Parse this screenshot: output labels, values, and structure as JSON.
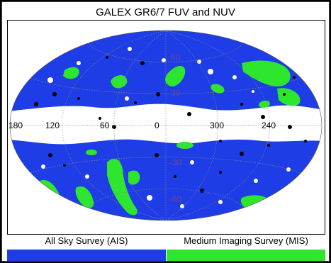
{
  "title": "GALEX GR6/7 FUV and NUV",
  "map": {
    "projection": "Aitoff",
    "coordinate_system": "galactic",
    "longitude_labels": [
      "180",
      "120",
      "60",
      "0",
      "300",
      "240"
    ],
    "latitude_labels": [
      "60",
      "30",
      "-30",
      "-60"
    ],
    "grid_lines": "dotted",
    "colors": {
      "ais": "#1e3de6",
      "mis": "#2ee62e",
      "other": "#000000",
      "background": "#ffffff"
    }
  },
  "legend": [
    {
      "label": "All Sky Survey (AIS)",
      "color": "#1e3de6"
    },
    {
      "label": "Medium Imaging Survey (MIS)",
      "color": "#2ee62e"
    }
  ]
}
